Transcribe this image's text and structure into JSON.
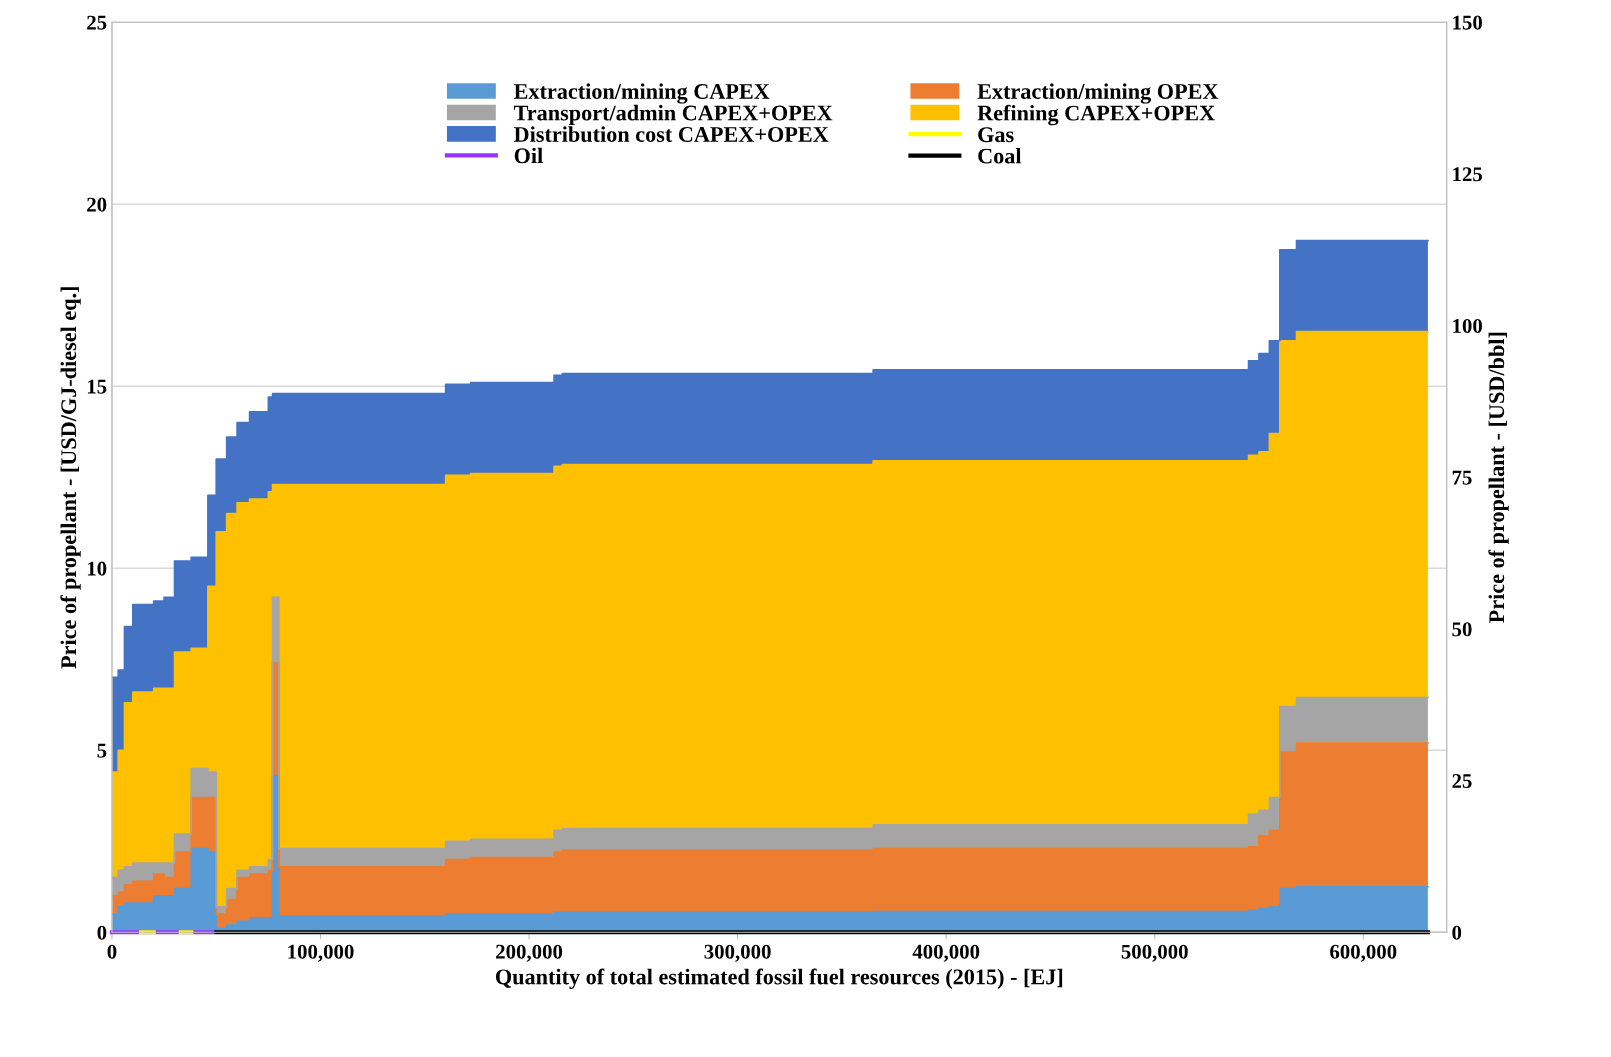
{
  "chart_data": {
    "type": "area",
    "stacked": true,
    "xlabel": "Quantity of total estimated fossil fuel resources (2015) - [EJ]",
    "ylabel": "Price of propellant - [USD/GJ-diesel eq.]",
    "y2label": "Price of propellant - [USD/bbl]",
    "x": [
      0,
      3000,
      3000,
      6000,
      6000,
      10000,
      10000,
      20000,
      20000,
      25000,
      25000,
      30000,
      30000,
      38000,
      38000,
      46000,
      46000,
      50000,
      50000,
      55000,
      55000,
      60000,
      60000,
      66000,
      66000,
      75000,
      75000,
      77000,
      77000,
      80000,
      80000,
      160000,
      160000,
      172000,
      172000,
      212000,
      212000,
      216000,
      216000,
      365000,
      365000,
      545000,
      545000,
      550000,
      550000,
      555000,
      555000,
      560000,
      560000,
      568000,
      568000,
      631000
    ],
    "series": [
      {
        "name": "Extraction/mining CAPEX",
        "color": "#5b9bd5",
        "values": [
          0.5,
          0.5,
          0.7,
          0.7,
          0.8,
          0.8,
          0.8,
          0.8,
          1.0,
          1.0,
          1.0,
          1.0,
          1.2,
          1.2,
          2.3,
          2.3,
          2.2,
          2.2,
          0.1,
          0.1,
          0.2,
          0.2,
          0.3,
          0.3,
          0.4,
          0.4,
          0.4,
          0.4,
          4.3,
          4.3,
          0.45,
          0.45,
          0.5,
          0.5,
          0.5,
          0.5,
          0.55,
          0.55,
          0.55,
          0.55,
          0.57,
          0.57,
          0.6,
          0.6,
          0.65,
          0.65,
          0.7,
          0.7,
          1.2,
          1.2,
          1.25,
          1.25
        ]
      },
      {
        "name": "Extraction/mining OPEX",
        "color": "#ed7d31",
        "values": [
          0.5,
          0.5,
          0.4,
          0.4,
          0.5,
          0.5,
          0.6,
          0.6,
          0.6,
          0.6,
          0.5,
          0.5,
          1.0,
          1.0,
          1.4,
          1.4,
          1.5,
          1.5,
          0.4,
          0.4,
          0.7,
          0.7,
          1.2,
          1.2,
          1.2,
          1.2,
          1.3,
          1.3,
          3.1,
          3.1,
          1.35,
          1.35,
          1.5,
          1.5,
          1.55,
          1.55,
          1.65,
          1.65,
          1.7,
          1.7,
          1.73,
          1.73,
          1.75,
          1.75,
          2.0,
          2.0,
          2.1,
          2.1,
          3.75,
          3.75,
          3.95,
          3.95
        ]
      },
      {
        "name": "Transport/admin CAPEX+OPEX",
        "color": "#a5a5a5",
        "values": [
          0.5,
          0.5,
          0.6,
          0.6,
          0.5,
          0.5,
          0.5,
          0.5,
          0.3,
          0.3,
          0.4,
          0.4,
          0.5,
          0.5,
          0.8,
          0.8,
          0.7,
          0.7,
          0.2,
          0.2,
          0.3,
          0.3,
          0.2,
          0.2,
          0.2,
          0.2,
          0.3,
          0.3,
          1.8,
          1.8,
          0.5,
          0.5,
          0.5,
          0.5,
          0.5,
          0.5,
          0.6,
          0.6,
          0.6,
          0.6,
          0.65,
          0.65,
          0.9,
          0.9,
          0.7,
          0.7,
          0.9,
          0.9,
          1.25,
          1.25,
          1.25,
          1.25
        ]
      },
      {
        "name": "Refining CAPEX+OPEX",
        "color": "#ffc000",
        "values": [
          2.9,
          2.9,
          3.3,
          3.3,
          4.5,
          4.5,
          4.7,
          4.7,
          4.8,
          4.8,
          4.8,
          4.8,
          5.0,
          5.0,
          3.3,
          3.3,
          5.1,
          5.1,
          10.3,
          10.3,
          10.3,
          10.3,
          10.1,
          10.1,
          10.1,
          10.1,
          10.1,
          10.1,
          3.1,
          3.1,
          10.0,
          10.0,
          10.05,
          10.05,
          10.05,
          10.05,
          10.0,
          10.0,
          10.0,
          10.0,
          10.0,
          10.0,
          9.85,
          9.85,
          9.85,
          9.85,
          10.0,
          10.0,
          10.05,
          10.05,
          10.05,
          10.05
        ]
      },
      {
        "name": "Distribution cost CAPEX+OPEX",
        "color": "#4472c4",
        "values": [
          2.6,
          2.6,
          2.2,
          2.2,
          2.1,
          2.1,
          2.4,
          2.4,
          2.4,
          2.4,
          2.5,
          2.5,
          2.5,
          2.5,
          2.5,
          2.5,
          2.5,
          2.5,
          2.0,
          2.0,
          2.1,
          2.1,
          2.2,
          2.2,
          2.4,
          2.4,
          2.6,
          2.6,
          2.5,
          2.5,
          2.5,
          2.5,
          2.5,
          2.5,
          2.5,
          2.5,
          2.5,
          2.5,
          2.5,
          2.5,
          2.5,
          2.5,
          2.6,
          2.6,
          2.7,
          2.7,
          2.55,
          2.55,
          2.5,
          2.5,
          2.5,
          2.5
        ]
      },
      {
        "name": "Gas",
        "type": "line",
        "color": "#ffff00",
        "x": [
          14000,
          20000,
          20001,
          33000,
          38000
        ],
        "values": [
          0,
          0,
          null,
          0,
          0
        ]
      },
      {
        "name": "Oil",
        "type": "line",
        "color": "#9933ff",
        "x": [
          0,
          48000
        ],
        "values": [
          0,
          0
        ]
      },
      {
        "name": "Coal",
        "type": "line",
        "color": "#000000",
        "x": [
          50000,
          631000
        ],
        "values": [
          0,
          0
        ]
      }
    ],
    "xlim": [
      0,
      640000
    ],
    "xticks": [
      0,
      {
        "value": 100000,
        "label": "100,000"
      },
      {
        "value": 200000,
        "label": "200,000"
      },
      {
        "value": 300000,
        "label": "300,000"
      },
      {
        "value": 400000,
        "label": "400,000"
      },
      {
        "value": 500000,
        "label": "500,000"
      },
      {
        "value": 600000,
        "label": "600,000"
      }
    ],
    "ylim": [
      0,
      25
    ],
    "yticks": [
      0,
      5,
      10,
      15,
      20,
      25
    ],
    "y2lim": [
      0,
      150
    ],
    "y2ticks": [
      0,
      25,
      50,
      75,
      100,
      125,
      150
    ],
    "grid": "y",
    "legend": "top"
  }
}
